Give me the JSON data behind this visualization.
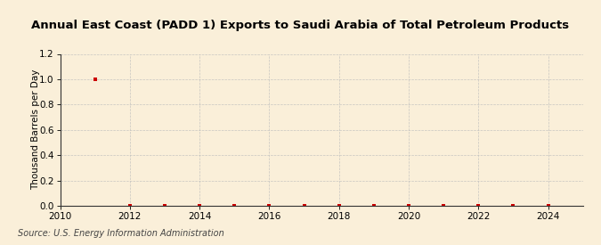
{
  "title": "Annual East Coast (PADD 1) Exports to Saudi Arabia of Total Petroleum Products",
  "ylabel": "Thousand Barrels per Day",
  "source": "Source: U.S. Energy Information Administration",
  "background_color": "#faefd9",
  "plot_bg_color": "#faefd9",
  "xlim": [
    2010,
    2025
  ],
  "ylim": [
    0.0,
    1.2
  ],
  "yticks": [
    0.0,
    0.2,
    0.4,
    0.6,
    0.8,
    1.0,
    1.2
  ],
  "xticks": [
    2010,
    2012,
    2014,
    2016,
    2018,
    2020,
    2022,
    2024
  ],
  "data_x": [
    2011,
    2012,
    2013,
    2014,
    2015,
    2016,
    2017,
    2018,
    2019,
    2020,
    2021,
    2022,
    2023,
    2024
  ],
  "data_y": [
    1.0,
    0.0,
    0.0,
    0.0,
    0.0,
    0.0,
    0.0,
    0.0,
    0.0,
    0.0,
    0.0,
    0.0,
    0.0,
    0.0
  ],
  "marker_color": "#cc0000",
  "grid_color": "#bbbbbb",
  "title_fontsize": 9.5,
  "axis_fontsize": 7.5,
  "source_fontsize": 7.0,
  "ylabel_fontsize": 7.5
}
